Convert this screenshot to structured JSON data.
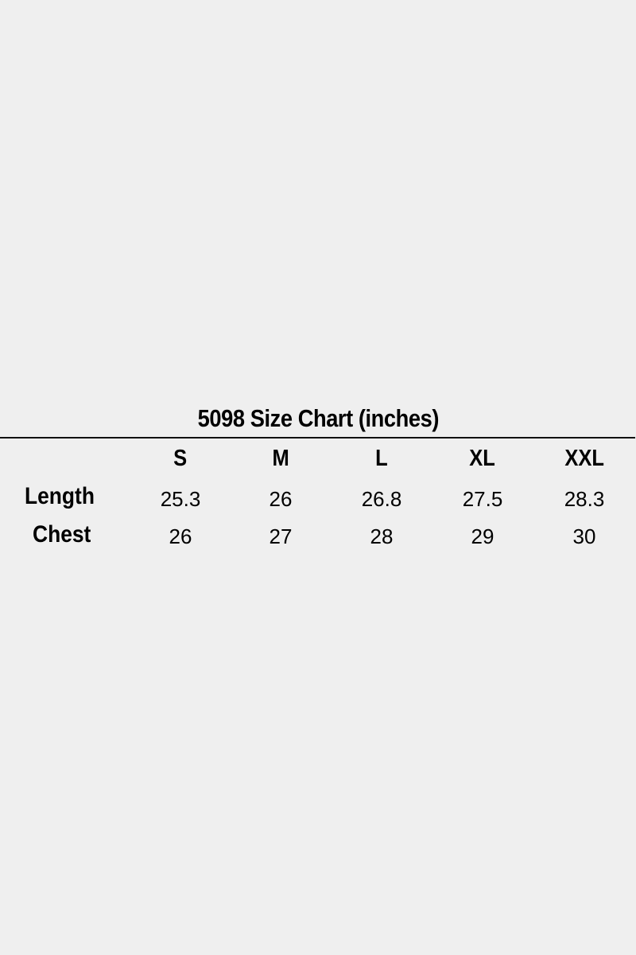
{
  "title": "5098 Size Chart (inches)",
  "columns": [
    "S",
    "M",
    "L",
    "XL",
    "XXL"
  ],
  "rows": [
    {
      "label": "Length",
      "values": [
        "25.3",
        "26",
        "26.8",
        "27.5",
        "28.3"
      ]
    },
    {
      "label": "Chest",
      "values": [
        "26",
        "27",
        "28",
        "29",
        "30"
      ]
    }
  ]
}
